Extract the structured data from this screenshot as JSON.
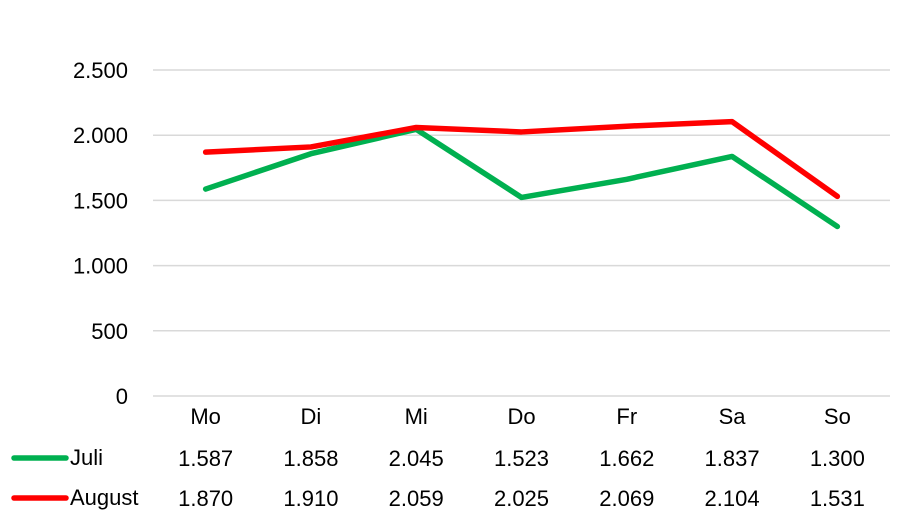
{
  "chart_data": {
    "type": "line",
    "categories": [
      "Mo",
      "Di",
      "Mi",
      "Do",
      "Fr",
      "Sa",
      "So"
    ],
    "series": [
      {
        "name": "Juli",
        "color": "#00B050",
        "values": [
          1587,
          1858,
          2045,
          1523,
          1662,
          1837,
          1300
        ],
        "labels": [
          "1.587",
          "1.858",
          "2.045",
          "1.523",
          "1.662",
          "1.837",
          "1.300"
        ]
      },
      {
        "name": "August",
        "color": "#FF0000",
        "values": [
          1870,
          1910,
          2059,
          2025,
          2069,
          2104,
          1531
        ],
        "labels": [
          "1.870",
          "1.910",
          "2.059",
          "2.025",
          "2.069",
          "2.104",
          "1.531"
        ]
      }
    ],
    "y_ticks": [
      0,
      500,
      1000,
      1500,
      2000,
      2500
    ],
    "y_tick_labels": [
      "0",
      "500",
      "1.000",
      "1.500",
      "2.000",
      "2.500"
    ],
    "ylim": [
      0,
      2500
    ],
    "grid": true,
    "legend": "data-table-below",
    "title": "",
    "xlabel": "",
    "ylabel": ""
  }
}
